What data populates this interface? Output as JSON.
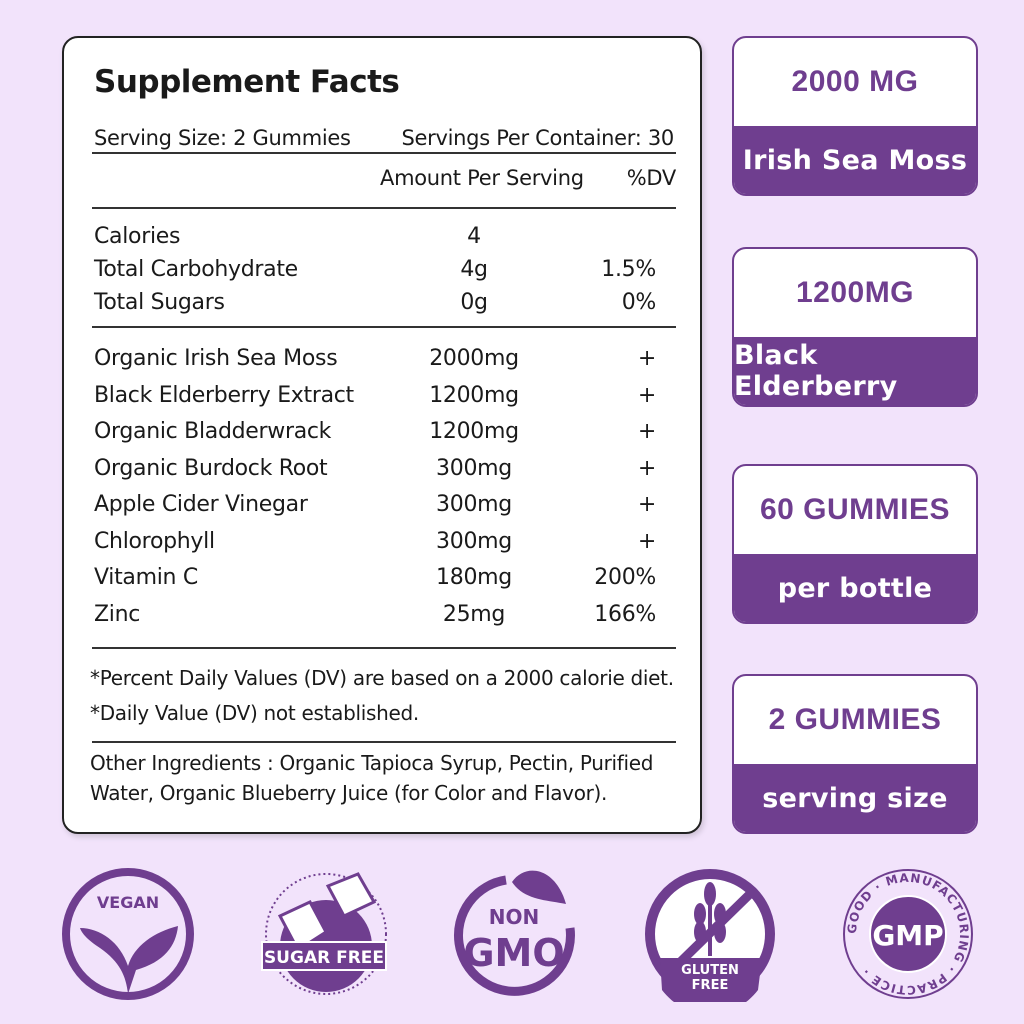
{
  "label": {
    "title": "Supplement Facts",
    "serving_size": "Serving Size: 2 Gummies",
    "servings_per_container": "Servings Per Container: 30",
    "amount_header": "Amount Per Serving",
    "dv_header": "%DV",
    "nutrition": [
      {
        "name": "Calories",
        "amount": "4",
        "dv": ""
      },
      {
        "name": "Total Carbohydrate",
        "amount": "4g",
        "dv": "1.5%"
      },
      {
        "name": "Total Sugars",
        "amount": "0g",
        "dv": "0%"
      }
    ],
    "ingredients": [
      {
        "name": "Organic Irish Sea Moss",
        "amount": "2000mg",
        "dv": "+"
      },
      {
        "name": "Black Elderberry Extract",
        "amount": "1200mg",
        "dv": "+"
      },
      {
        "name": "Organic Bladderwrack",
        "amount": "1200mg",
        "dv": "+"
      },
      {
        "name": "Organic Burdock Root",
        "amount": "300mg",
        "dv": "+"
      },
      {
        "name": "Apple Cider Vinegar",
        "amount": "300mg",
        "dv": "+"
      },
      {
        "name": "Chlorophyll",
        "amount": "300mg",
        "dv": "+"
      },
      {
        "name": "Vitamin C",
        "amount": "180mg",
        "dv": "200%"
      },
      {
        "name": "Zinc",
        "amount": "25mg",
        "dv": "166%"
      }
    ],
    "footnote1": "*Percent Daily Values (DV) are based on a 2000 calorie diet.",
    "footnote2": "*Daily Value (DV) not established.",
    "other_label": "Other Ingredients : ",
    "other_line1": "Organic Tapioca Syrup, Pectin, Purified",
    "other_line2": "Water, Organic  Blueberry Juice (for Color and Flavor)."
  },
  "highlights": [
    {
      "top": "2000 MG",
      "bottom": "Irish Sea Moss"
    },
    {
      "top": "1200MG",
      "bottom": "Black Elderberry"
    },
    {
      "top": "60 GUMMIES",
      "bottom": "per bottle"
    },
    {
      "top": "2 GUMMIES",
      "bottom": "serving size"
    }
  ],
  "badges": {
    "vegan": "VEGAN",
    "sugar_free": "SUGAR FREE",
    "non": "NON",
    "gmo": "GMO",
    "gluten": "GLUTEN",
    "free": "FREE",
    "gmp": "GMP",
    "gmp_ring": "GOOD · MANUFACTURING · PRACTICE ·"
  },
  "colors": {
    "accent": "#6f3e8f",
    "background": "#f2e3fb"
  }
}
